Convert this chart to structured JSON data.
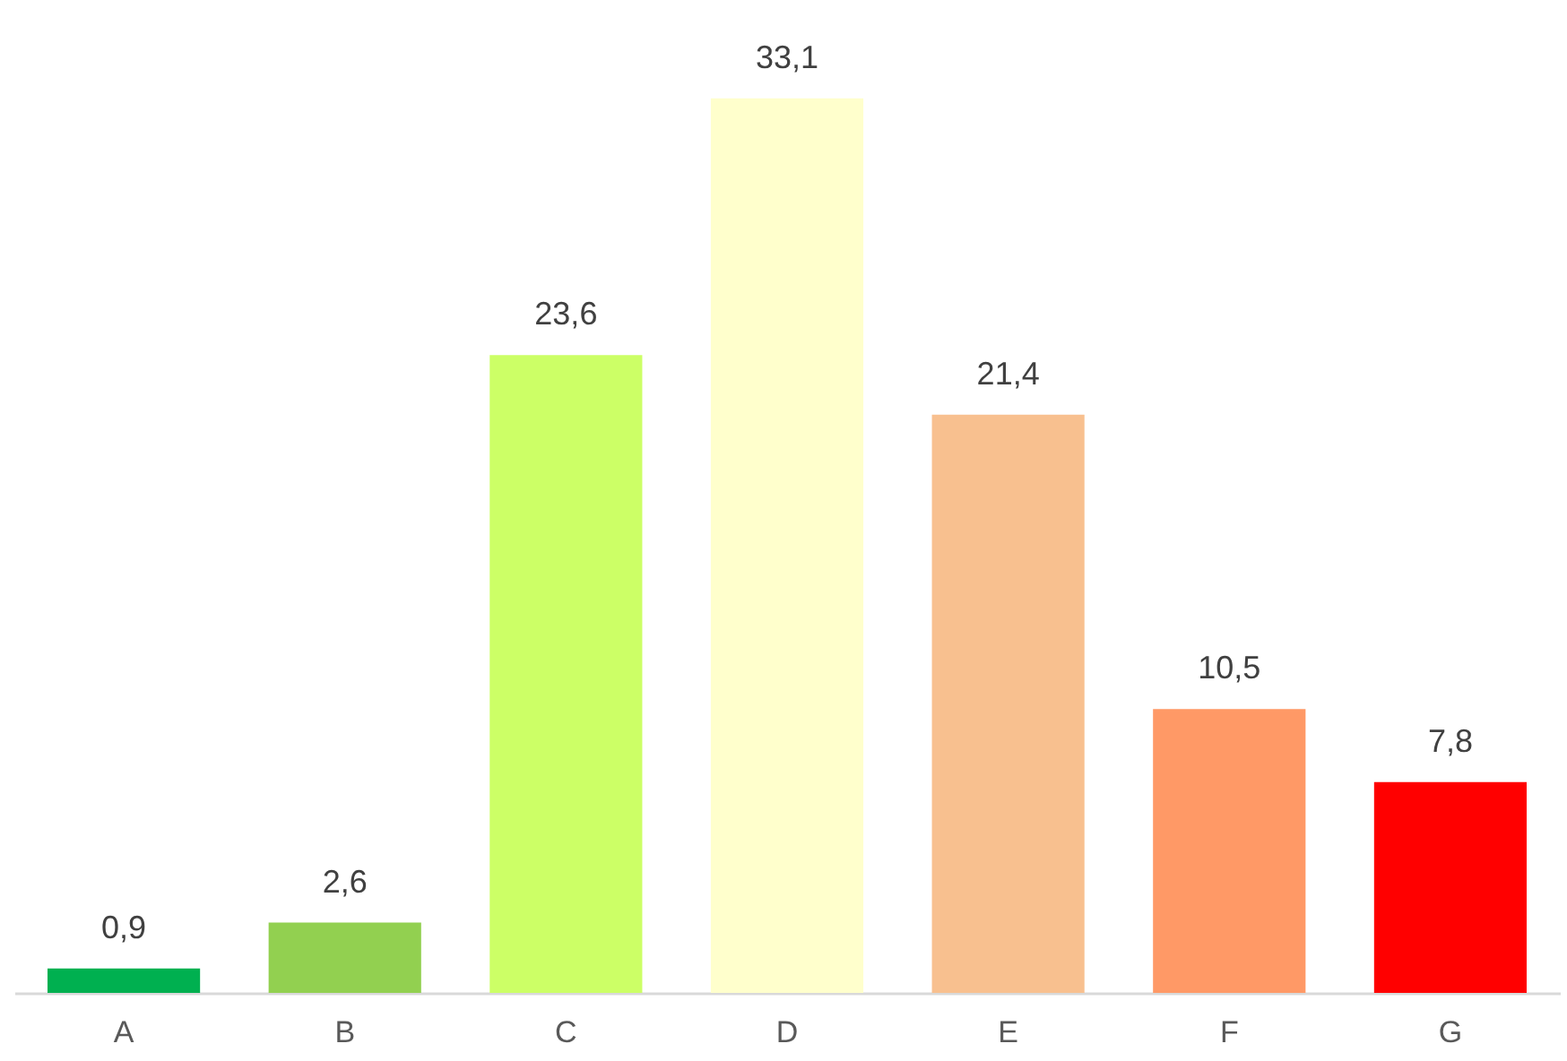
{
  "chart_data": {
    "type": "bar",
    "categories": [
      "A",
      "B",
      "C",
      "D",
      "E",
      "F",
      "G"
    ],
    "values": [
      0.9,
      2.6,
      23.6,
      33.1,
      21.4,
      10.5,
      7.8
    ],
    "colors": [
      "#00b050",
      "#92d050",
      "#ccff66",
      "#ffffcc",
      "#f8c08f",
      "#ff9966",
      "#ff0000"
    ],
    "value_labels": [
      "0,9",
      "2,6",
      "23,6",
      "33,1",
      "21,4",
      "10,5",
      "7,8"
    ],
    "grid": false,
    "legend": false
  }
}
